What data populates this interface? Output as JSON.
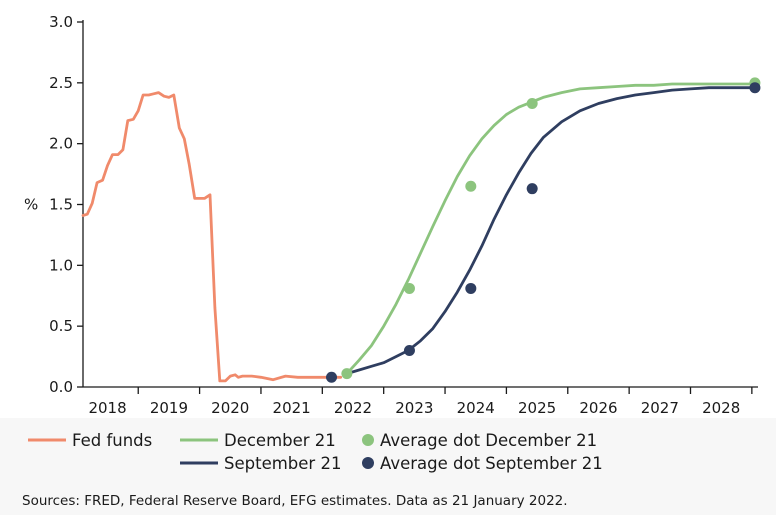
{
  "colors": {
    "fed_funds": "#f08a6b",
    "december": "#8cc47e",
    "september": "#2f3e60",
    "dot_december": "#8cc47e",
    "dot_september": "#2f3e60",
    "axis": "#1a1a1a",
    "background": "#ffffff"
  },
  "chart_data": {
    "type": "line",
    "title": "",
    "xlabel": "",
    "ylabel": "%",
    "ylim": [
      0,
      3.0
    ],
    "xlim": [
      2017.6,
      2028.6
    ],
    "grid": false,
    "legend_position": "bottom",
    "y_ticks": [
      "0.0",
      "0.5",
      "1.0",
      "1.5",
      "2.0",
      "2.5",
      "3.0"
    ],
    "x_ticks": [
      "2018",
      "2019",
      "2020",
      "2021",
      "2022",
      "2023",
      "2024",
      "2025",
      "2026",
      "2027",
      "2028"
    ],
    "series": [
      {
        "name": "Fed funds",
        "kind": "line",
        "color_key": "fed_funds",
        "x": [
          2017.6,
          2017.67,
          2017.75,
          2017.83,
          2017.92,
          2018.0,
          2018.08,
          2018.17,
          2018.25,
          2018.33,
          2018.42,
          2018.5,
          2018.58,
          2018.67,
          2018.75,
          2018.83,
          2018.92,
          2019.0,
          2019.08,
          2019.17,
          2019.25,
          2019.33,
          2019.42,
          2019.5,
          2019.58,
          2019.67,
          2019.75,
          2019.83,
          2019.92,
          2020.0,
          2020.08,
          2020.13,
          2020.2,
          2020.27,
          2020.35,
          2020.5,
          2020.7,
          2020.9,
          2021.1,
          2021.25,
          2021.35,
          2021.5,
          2021.65,
          2021.8
        ],
        "y": [
          1.41,
          1.42,
          1.51,
          1.68,
          1.7,
          1.82,
          1.91,
          1.91,
          1.95,
          2.19,
          2.2,
          2.27,
          2.4,
          2.4,
          2.41,
          2.42,
          2.39,
          2.38,
          2.4,
          2.13,
          2.04,
          1.83,
          1.55,
          1.55,
          1.55,
          1.58,
          0.65,
          0.05,
          0.05,
          0.09,
          0.1,
          0.08,
          0.09,
          0.09,
          0.09,
          0.08,
          0.06,
          0.09,
          0.08,
          0.08,
          0.08,
          0.08,
          0.08,
          0.08
        ]
      },
      {
        "name": "December 21",
        "kind": "line",
        "color_key": "december",
        "x": [
          2021.9,
          2022.1,
          2022.3,
          2022.5,
          2022.7,
          2022.9,
          2023.1,
          2023.3,
          2023.5,
          2023.7,
          2023.9,
          2024.1,
          2024.3,
          2024.5,
          2024.7,
          2024.9,
          2025.1,
          2025.4,
          2025.7,
          2026.0,
          2026.3,
          2026.6,
          2026.9,
          2027.2,
          2027.5,
          2027.8,
          2028.1,
          2028.4,
          2028.55
        ],
        "y": [
          0.11,
          0.22,
          0.34,
          0.5,
          0.68,
          0.88,
          1.1,
          1.32,
          1.53,
          1.73,
          1.9,
          2.04,
          2.15,
          2.24,
          2.3,
          2.34,
          2.38,
          2.42,
          2.45,
          2.46,
          2.47,
          2.48,
          2.48,
          2.49,
          2.49,
          2.49,
          2.49,
          2.49,
          2.49
        ]
      },
      {
        "name": "September 21",
        "kind": "line",
        "color_key": "september",
        "x": [
          2021.9,
          2022.1,
          2022.3,
          2022.5,
          2022.7,
          2022.9,
          2023.1,
          2023.3,
          2023.5,
          2023.7,
          2023.9,
          2024.1,
          2024.3,
          2024.5,
          2024.7,
          2024.9,
          2025.1,
          2025.4,
          2025.7,
          2026.0,
          2026.3,
          2026.6,
          2026.9,
          2027.2,
          2027.5,
          2027.8,
          2028.1,
          2028.4,
          2028.55
        ],
        "y": [
          0.11,
          0.14,
          0.17,
          0.2,
          0.25,
          0.3,
          0.38,
          0.48,
          0.62,
          0.78,
          0.96,
          1.16,
          1.38,
          1.58,
          1.76,
          1.92,
          2.05,
          2.18,
          2.27,
          2.33,
          2.37,
          2.4,
          2.42,
          2.44,
          2.45,
          2.46,
          2.46,
          2.46,
          2.46
        ]
      },
      {
        "name": "Average dot December 21",
        "kind": "dots",
        "color_key": "dot_december",
        "x": [
          2021.9,
          2022.92,
          2023.92,
          2024.92,
          2028.55
        ],
        "y": [
          0.11,
          0.81,
          1.65,
          2.33,
          2.5
        ]
      },
      {
        "name": "Average dot September 21",
        "kind": "dots",
        "color_key": "dot_september",
        "x": [
          2021.65,
          2022.92,
          2023.92,
          2024.92,
          2028.55
        ],
        "y": [
          0.08,
          0.3,
          0.81,
          1.63,
          2.46
        ]
      }
    ]
  },
  "legend": {
    "items": [
      {
        "label": "Fed funds",
        "kind": "line",
        "color_key": "fed_funds"
      },
      {
        "label": "December 21",
        "kind": "line",
        "color_key": "december"
      },
      {
        "label": "Average dot December 21",
        "kind": "dot",
        "color_key": "dot_december"
      },
      {
        "label": "September 21",
        "kind": "line",
        "color_key": "september"
      },
      {
        "label": "Average dot September 21",
        "kind": "dot",
        "color_key": "dot_september"
      }
    ]
  },
  "source_note": "Sources: FRED, Federal Reserve Board, EFG estimates. Data as 21 January 2022."
}
